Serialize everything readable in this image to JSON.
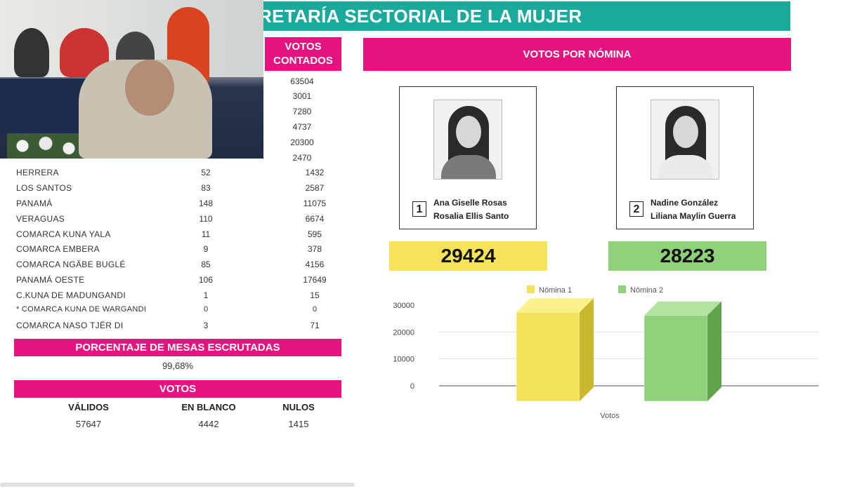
{
  "title": "RETARÍA SECTORIAL DE LA MUJER",
  "votes_header": "VOTOS CONTADOS",
  "top_vote_counts": [
    "63504",
    "3001",
    "7280",
    "4737",
    "20300",
    "2470"
  ],
  "table_rows": [
    {
      "name": "HERRERA",
      "mesas": "52",
      "votos": "1432"
    },
    {
      "name": "LOS SANTOS",
      "mesas": "83",
      "votos": "2587"
    },
    {
      "name": "PANAMÁ",
      "mesas": "148",
      "votos": "11075"
    },
    {
      "name": "VERAGUAS",
      "mesas": "110",
      "votos": "6674"
    },
    {
      "name": "COMARCA KUNA YALA",
      "mesas": "11",
      "votos": "595"
    },
    {
      "name": "COMARCA EMBERA",
      "mesas": "9",
      "votos": "378"
    },
    {
      "name": "COMARCA NGÄBE BUGLÉ",
      "mesas": "85",
      "votos": "4156"
    },
    {
      "name": "PANAMÁ OESTE",
      "mesas": "106",
      "votos": "17649"
    },
    {
      "name": "C.KUNA DE MADUNGANDI",
      "mesas": "1",
      "votos": "15"
    },
    {
      "name": "* COMARCA KUNA DE WARGANDI",
      "mesas": "0",
      "votos": "0"
    },
    {
      "name": "COMARCA NASO TJËR DI",
      "mesas": "3",
      "votos": "71"
    }
  ],
  "percent_section": {
    "label": "PORCENTAJE DE MESAS ESCRUTADAS",
    "value": "99,68%"
  },
  "votos_section": {
    "label": "VOTOS",
    "validos_label": "VÁLIDOS",
    "validos": "57647",
    "blanco_label": "EN BLANCO",
    "blanco": "4442",
    "nulos_label": "NULOS",
    "nulos": "1415"
  },
  "nomina_header": "VOTOS POR NÓMINA",
  "candidates": [
    {
      "number": "1",
      "line1": "Ana Giselle Rosas",
      "line2": "Rosalia Ellis Santo",
      "total": "29424",
      "color": "#f7e35a"
    },
    {
      "number": "2",
      "line1": "Nadine González",
      "line2": "Liliana Maylin Guerra",
      "total": "28223",
      "color": "#8fd07a"
    }
  ],
  "chart_data": {
    "type": "bar",
    "categories": [
      "Votos"
    ],
    "series": [
      {
        "name": "Nómina 1",
        "values": [
          29424
        ],
        "color": "#f4e35a"
      },
      {
        "name": "Nómina 2",
        "values": [
          28223
        ],
        "color": "#8fd07a"
      }
    ],
    "xlabel": "Votos",
    "ylim": [
      0,
      30000
    ],
    "yticks": [
      "30000",
      "20000",
      "10000",
      "0"
    ],
    "legend": "top",
    "style": "3d"
  }
}
